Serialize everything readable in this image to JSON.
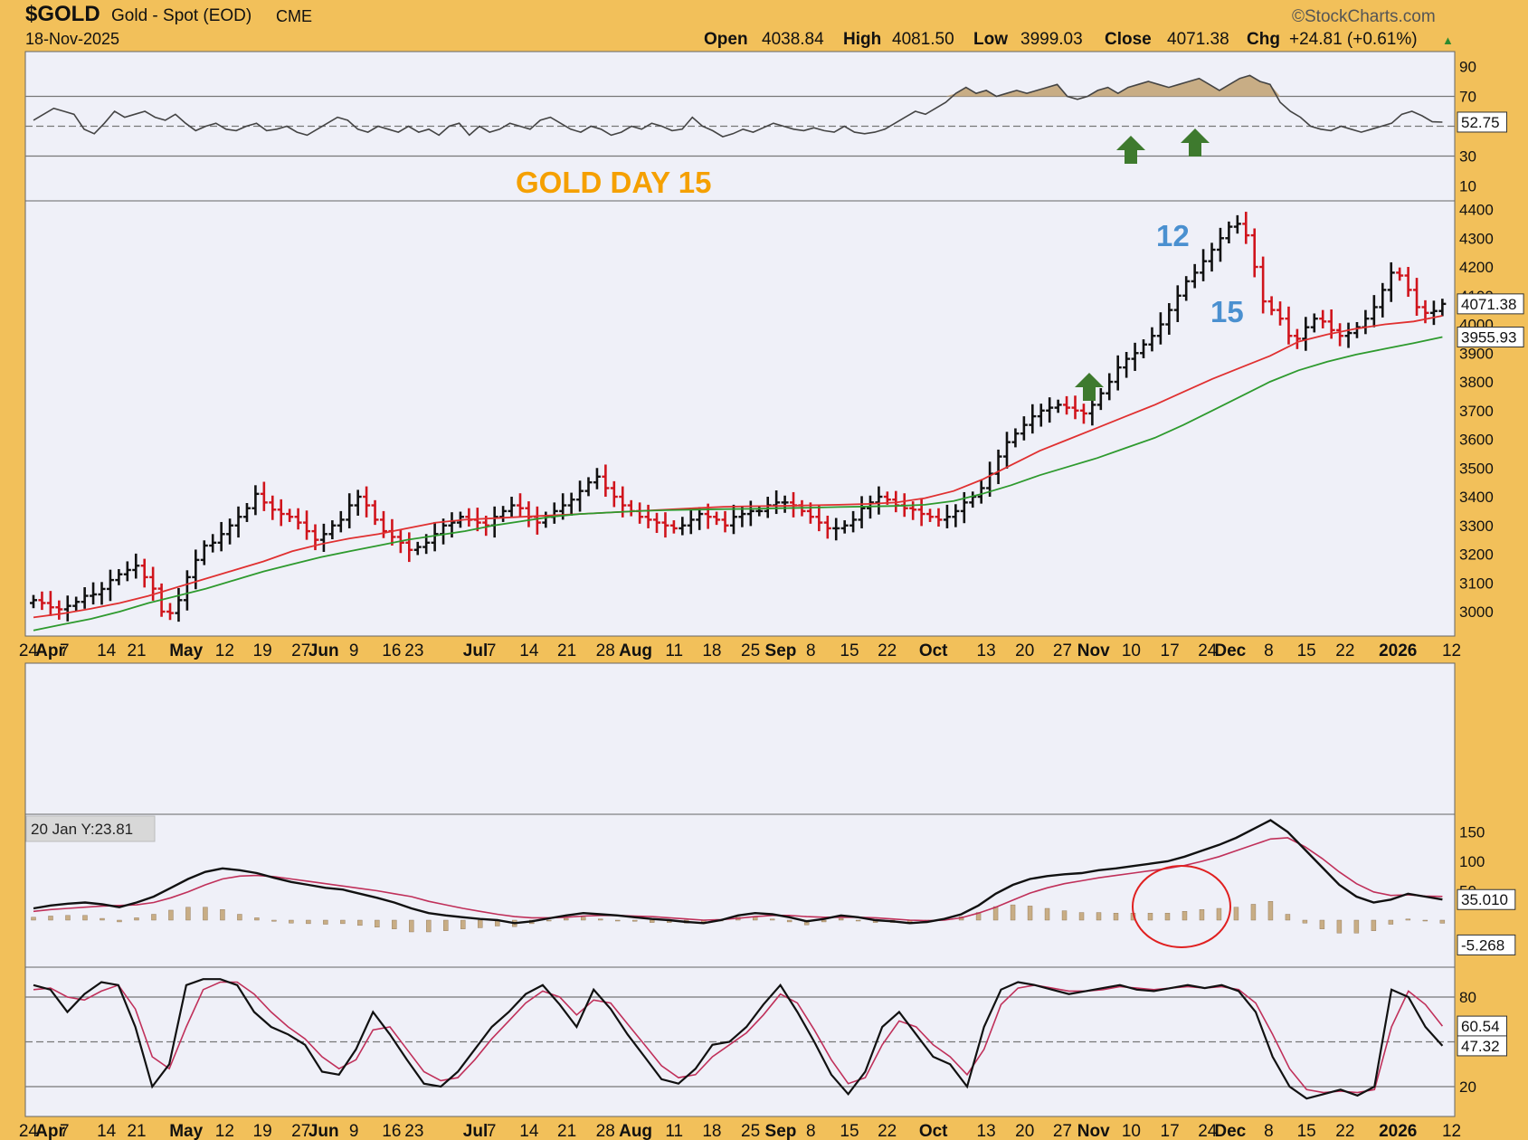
{
  "header": {
    "symbol": "$GOLD",
    "name": "Gold - Spot (EOD)",
    "exchange": "CME",
    "date": "18-Nov-2025",
    "brand": "©StockCharts.com",
    "open_label": "Open",
    "open": "4038.84",
    "high_label": "High",
    "high": "4081.50",
    "low_label": "Low",
    "low": "3999.03",
    "close_label": "Close",
    "close": "4071.38",
    "chg_label": "Chg",
    "chg": "+24.81 (+0.61%)"
  },
  "colors": {
    "background": "#f2c05a",
    "panel": "#eff0f8",
    "up": "#111111",
    "down": "#d0141c",
    "ma_fast": "#e03030",
    "ma_slow": "#2e9a2e",
    "signal": "#c0305a",
    "arrow": "#3e7a2e",
    "annotation_blue": "#4a90d0",
    "annotation_orange": "#f5a000",
    "hist": "#c8ad85"
  },
  "annotations": {
    "title": "GOLD DAY 15",
    "wave_12": "12",
    "wave_15": "15",
    "macd_tooltip": "20 Jan Y:23.81"
  },
  "x_axis": {
    "labels": [
      {
        "t": "24",
        "b": false,
        "i": -0.6
      },
      {
        "t": "Apr",
        "b": true,
        "i": 2
      },
      {
        "t": "7",
        "b": false,
        "i": 3.7
      },
      {
        "t": "14",
        "b": false,
        "i": 8.7
      },
      {
        "t": "21",
        "b": false,
        "i": 12.3
      },
      {
        "t": "May",
        "b": true,
        "i": 18.2
      },
      {
        "t": "12",
        "b": false,
        "i": 22.8
      },
      {
        "t": "19",
        "b": false,
        "i": 27.3
      },
      {
        "t": "27",
        "b": false,
        "i": 31.9
      },
      {
        "t": "Jun",
        "b": true,
        "i": 34.6
      },
      {
        "t": "9",
        "b": false,
        "i": 38.2
      },
      {
        "t": "16",
        "b": false,
        "i": 42.7
      },
      {
        "t": "23",
        "b": false,
        "i": 45.4
      },
      {
        "t": "Jul",
        "b": true,
        "i": 52.7
      },
      {
        "t": "7",
        "b": false,
        "i": 54.6
      },
      {
        "t": "14",
        "b": false,
        "i": 59.1
      },
      {
        "t": "21",
        "b": false,
        "i": 63.6
      },
      {
        "t": "28",
        "b": false,
        "i": 68.2
      },
      {
        "t": "Aug",
        "b": true,
        "i": 71.8
      },
      {
        "t": "11",
        "b": false,
        "i": 76.4
      },
      {
        "t": "18",
        "b": false,
        "i": 80.9
      },
      {
        "t": "25",
        "b": false,
        "i": 85.5
      },
      {
        "t": "Sep",
        "b": true,
        "i": 89.1
      },
      {
        "t": "8",
        "b": false,
        "i": 92.7
      },
      {
        "t": "15",
        "b": false,
        "i": 97.3
      },
      {
        "t": "22",
        "b": false,
        "i": 101.8
      },
      {
        "t": "Oct",
        "b": true,
        "i": 107.3
      },
      {
        "t": "13",
        "b": false,
        "i": 113.6
      },
      {
        "t": "20",
        "b": false,
        "i": 118.2
      },
      {
        "t": "27",
        "b": false,
        "i": 122.7
      },
      {
        "t": "Nov",
        "b": true,
        "i": 126.4
      },
      {
        "t": "10",
        "b": false,
        "i": 130.9
      },
      {
        "t": "17",
        "b": false,
        "i": 135.5
      },
      {
        "t": "24",
        "b": false,
        "i": 140
      },
      {
        "t": "Dec",
        "b": true,
        "i": 142.7
      },
      {
        "t": "8",
        "b": false,
        "i": 147.3
      },
      {
        "t": "15",
        "b": false,
        "i": 151.8
      },
      {
        "t": "22",
        "b": false,
        "i": 156.4
      },
      {
        "t": "2026",
        "b": true,
        "i": 162.7
      },
      {
        "t": "12",
        "b": false,
        "i": 169.1
      }
    ]
  },
  "chart_data": [
    {
      "type": "line",
      "panel": "RSI",
      "y_ticks": [
        10,
        30,
        70,
        90
      ],
      "ylim": [
        0,
        100
      ],
      "reference_lines": [
        30,
        50,
        70
      ],
      "last_value_label": "52.75",
      "series": [
        {
          "values": [
            54,
            58,
            62,
            60,
            58,
            48,
            45,
            52,
            60,
            56,
            58,
            60,
            56,
            54,
            58,
            52,
            47,
            50,
            52,
            48,
            47,
            50,
            52,
            47,
            48,
            50,
            46,
            44,
            48,
            52,
            56,
            54,
            48,
            46,
            50,
            48,
            46,
            50,
            46,
            48,
            44,
            50,
            52,
            44,
            50,
            46,
            48,
            52,
            50,
            48,
            54,
            56,
            52,
            48,
            46,
            50,
            48,
            44,
            46,
            50,
            48,
            52,
            50,
            47,
            48,
            56,
            50,
            47,
            43,
            45,
            48,
            46,
            49,
            52,
            50,
            48,
            47,
            49,
            47,
            46,
            50,
            46,
            45,
            46,
            48,
            52,
            56,
            60,
            58,
            62,
            66,
            72,
            76,
            72,
            74,
            70,
            72,
            74,
            72,
            74,
            76,
            78,
            70,
            68,
            70,
            74,
            76,
            72,
            76,
            78,
            80,
            78,
            76,
            78,
            80,
            82,
            78,
            74,
            78,
            82,
            84,
            80,
            78,
            66,
            60,
            56,
            50,
            48,
            47,
            50,
            48,
            46,
            48,
            50,
            52,
            58,
            60,
            57,
            53,
            52.75
          ]
        }
      ]
    },
    {
      "type": "ohlc",
      "panel": "Price",
      "y_ticks": [
        3000,
        3100,
        3200,
        3300,
        3400,
        3500,
        3600,
        3700,
        3800,
        3900,
        4000,
        4100,
        4200,
        4300,
        4400
      ],
      "ylim": [
        2915,
        4430
      ],
      "last_close": "4071.38",
      "last_ma_label": "3955.93",
      "series": [
        {
          "name": "close",
          "values": [
            3040,
            3030,
            3015,
            3008,
            3020,
            3034,
            3055,
            3060,
            3079,
            3110,
            3130,
            3145,
            3160,
            3120,
            3080,
            3000,
            2995,
            3040,
            3120,
            3180,
            3230,
            3240,
            3270,
            3300,
            3330,
            3360,
            3410,
            3380,
            3355,
            3340,
            3330,
            3310,
            3280,
            3250,
            3270,
            3300,
            3320,
            3370,
            3400,
            3370,
            3320,
            3280,
            3260,
            3240,
            3215,
            3225,
            3240,
            3270,
            3300,
            3310,
            3330,
            3320,
            3310,
            3300,
            3330,
            3350,
            3370,
            3360,
            3330,
            3310,
            3330,
            3350,
            3370,
            3390,
            3420,
            3450,
            3470,
            3430,
            3400,
            3370,
            3350,
            3330,
            3320,
            3310,
            3300,
            3290,
            3300,
            3320,
            3340,
            3330,
            3320,
            3300,
            3330,
            3340,
            3350,
            3350,
            3370,
            3380,
            3380,
            3370,
            3350,
            3330,
            3310,
            3290,
            3290,
            3300,
            3320,
            3360,
            3380,
            3400,
            3390,
            3370,
            3360,
            3355,
            3340,
            3330,
            3320,
            3330,
            3350,
            3380,
            3400,
            3430,
            3480,
            3540,
            3590,
            3620,
            3650,
            3680,
            3700,
            3710,
            3720,
            3710,
            3700,
            3690,
            3720,
            3760,
            3800,
            3850,
            3880,
            3900,
            3930,
            3960,
            4000,
            4050,
            4100,
            4150,
            4180,
            4220,
            4260,
            4300,
            4340,
            4350,
            4310,
            4200,
            4080,
            4050,
            4020,
            3960,
            3950,
            3990,
            4020,
            4010,
            3980,
            3960,
            3970,
            3990,
            4020,
            4060,
            4120,
            4180,
            4170,
            4120,
            4060,
            4040,
            4046.57,
            4071.38
          ]
        },
        {
          "name": "ma_fast",
          "values": [
            2980,
            2993,
            3010,
            3030,
            3055,
            3085,
            3115,
            3145,
            3175,
            3210,
            3235,
            3255,
            3270,
            3290,
            3310,
            3320,
            3325,
            3330,
            3335,
            3340,
            3345,
            3350,
            3355,
            3360,
            3365,
            3367,
            3368,
            3370,
            3372,
            3375,
            3380,
            3395,
            3420,
            3460,
            3510,
            3560,
            3600,
            3640,
            3680,
            3720,
            3765,
            3810,
            3850,
            3890,
            3940,
            3965,
            3985,
            4000,
            4010,
            4030
          ]
        },
        {
          "name": "ma_slow",
          "values": [
            2935,
            2955,
            2975,
            3000,
            3030,
            3055,
            3080,
            3110,
            3140,
            3165,
            3190,
            3210,
            3230,
            3250,
            3265,
            3280,
            3300,
            3315,
            3330,
            3340,
            3345,
            3350,
            3353,
            3355,
            3357,
            3358,
            3360,
            3362,
            3364,
            3366,
            3368,
            3372,
            3385,
            3410,
            3440,
            3475,
            3505,
            3535,
            3570,
            3605,
            3650,
            3700,
            3750,
            3800,
            3840,
            3870,
            3895,
            3915,
            3935,
            3955.93
          ]
        }
      ]
    },
    {
      "type": "line",
      "panel": "MACD",
      "y_ticks": [
        -50,
        50,
        100,
        150
      ],
      "ylim": [
        -80,
        180
      ],
      "last_value_labels": [
        "35.010",
        "-5.268"
      ],
      "series": [
        {
          "name": "macd",
          "values": [
            20,
            25,
            28,
            30,
            27,
            22,
            30,
            40,
            55,
            70,
            82,
            88,
            85,
            80,
            72,
            65,
            60,
            55,
            52,
            45,
            38,
            30,
            20,
            12,
            8,
            5,
            2,
            0,
            -5,
            -2,
            3,
            8,
            12,
            10,
            8,
            5,
            2,
            0,
            -3,
            -5,
            0,
            8,
            12,
            10,
            5,
            -2,
            2,
            8,
            5,
            0,
            -2,
            -5,
            -3,
            2,
            10,
            25,
            45,
            60,
            70,
            75,
            78,
            80,
            85,
            88,
            92,
            96,
            100,
            108,
            118,
            128,
            140,
            155,
            170,
            150,
            120,
            90,
            60,
            40,
            30,
            35,
            45,
            40,
            35.01
          ]
        },
        {
          "name": "signal",
          "values": [
            15,
            18,
            20,
            22,
            24,
            25,
            26,
            30,
            38,
            48,
            60,
            70,
            75,
            76,
            74,
            70,
            66,
            62,
            58,
            54,
            50,
            45,
            40,
            32,
            26,
            20,
            15,
            10,
            6,
            4,
            4,
            5,
            7,
            8,
            8,
            7,
            6,
            4,
            2,
            0,
            1,
            3,
            6,
            8,
            8,
            6,
            5,
            5,
            5,
            4,
            2,
            0,
            -1,
            0,
            4,
            12,
            22,
            34,
            46,
            55,
            62,
            67,
            72,
            76,
            80,
            84,
            88,
            93,
            100,
            108,
            118,
            128,
            138,
            140,
            125,
            105,
            82,
            62,
            48,
            42,
            43,
            41,
            40.28
          ]
        },
        {
          "name": "histogram",
          "values": [
            5,
            7,
            8,
            8,
            3,
            -3,
            4,
            10,
            17,
            22,
            22,
            18,
            10,
            4,
            -2,
            -5,
            -6,
            -7,
            -6,
            -9,
            -12,
            -15,
            -20,
            -20,
            -18,
            -15,
            -13,
            -10,
            -11,
            -6,
            -1,
            3,
            5,
            2,
            0,
            -2,
            -4,
            -4,
            -5,
            -5,
            -1,
            5,
            6,
            2,
            -3,
            -8,
            -3,
            3,
            0,
            -4,
            -4,
            -5,
            -2,
            2,
            6,
            13,
            23,
            26,
            24,
            20,
            16,
            13,
            13,
            12,
            12,
            12,
            12,
            15,
            18,
            20,
            22,
            27,
            32,
            10,
            -5,
            -15,
            -22,
            -22,
            -18,
            -7,
            2,
            -1,
            -5.268
          ]
        }
      ]
    },
    {
      "type": "line",
      "panel": "Stochastic",
      "y_ticks": [
        20,
        80
      ],
      "ylim": [
        0,
        100
      ],
      "reference_lines": [
        20,
        50,
        80
      ],
      "last_value_labels": [
        "60.54",
        "47.32"
      ],
      "series": [
        {
          "name": "k",
          "values": [
            88,
            85,
            70,
            82,
            90,
            88,
            60,
            20,
            35,
            88,
            92,
            92,
            88,
            70,
            60,
            55,
            48,
            30,
            28,
            45,
            70,
            55,
            38,
            22,
            20,
            30,
            45,
            60,
            70,
            82,
            88,
            75,
            60,
            85,
            72,
            55,
            40,
            25,
            22,
            32,
            48,
            50,
            60,
            75,
            88,
            70,
            50,
            28,
            15,
            30,
            60,
            70,
            55,
            40,
            35,
            20,
            60,
            85,
            90,
            88,
            85,
            82,
            84,
            86,
            88,
            85,
            84,
            86,
            88,
            86,
            88,
            84,
            70,
            40,
            20,
            12,
            15,
            18,
            14,
            20,
            85,
            80,
            60,
            47.32
          ]
        },
        {
          "name": "d",
          "values": [
            85,
            86,
            80,
            78,
            84,
            88,
            72,
            40,
            32,
            60,
            85,
            90,
            90,
            82,
            70,
            60,
            52,
            40,
            32,
            38,
            58,
            60,
            45,
            30,
            24,
            26,
            38,
            52,
            64,
            76,
            84,
            80,
            68,
            78,
            76,
            62,
            48,
            34,
            26,
            28,
            40,
            48,
            56,
            68,
            82,
            76,
            58,
            38,
            22,
            26,
            48,
            64,
            60,
            48,
            40,
            28,
            45,
            75,
            86,
            88,
            86,
            84,
            84,
            85,
            87,
            86,
            85,
            86,
            87,
            86,
            87,
            85,
            76,
            55,
            32,
            18,
            16,
            17,
            16,
            18,
            60,
            84,
            75,
            60.54
          ]
        }
      ]
    }
  ]
}
